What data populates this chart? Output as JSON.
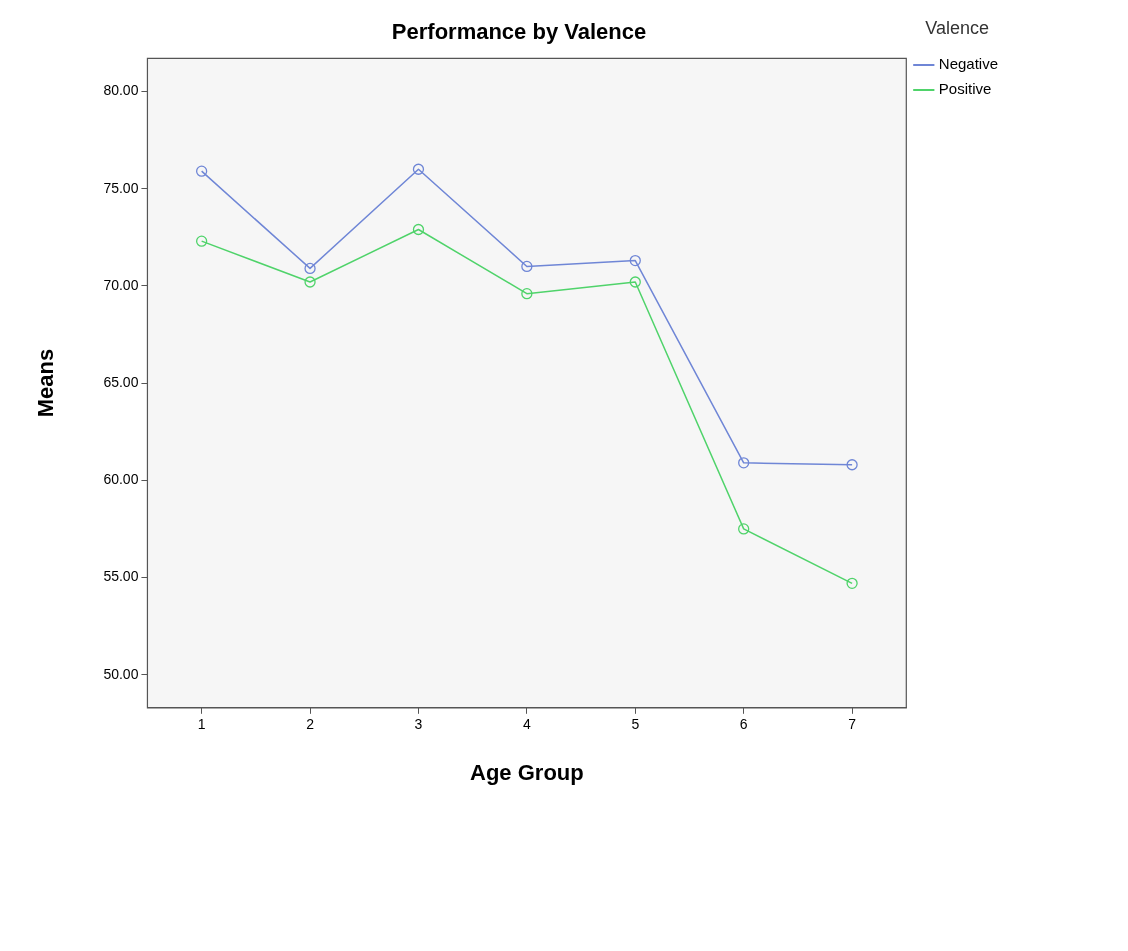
{
  "chart_data": {
    "type": "line",
    "title": "Performance by Valence",
    "xlabel": "Age Group",
    "ylabel": "Means",
    "legend_title": "Valence",
    "categories": [
      "1",
      "2",
      "3",
      "4",
      "5",
      "6",
      "7"
    ],
    "series": [
      {
        "name": "Negative",
        "color": "#6f86d6",
        "values": [
          75.9,
          70.9,
          76.0,
          71.0,
          71.3,
          60.9,
          60.8
        ]
      },
      {
        "name": "Positive",
        "color": "#4fd36a",
        "values": [
          72.3,
          70.2,
          72.9,
          69.6,
          70.2,
          57.5,
          54.7
        ]
      }
    ],
    "ylim": [
      48.3,
      81.7
    ],
    "yticks": [
      {
        "value": 50,
        "label": "50.00"
      },
      {
        "value": 55,
        "label": "55.00"
      },
      {
        "value": 60,
        "label": "60.00"
      },
      {
        "value": 65,
        "label": "65.00"
      },
      {
        "value": 70,
        "label": "70.00"
      },
      {
        "value": 75,
        "label": "75.00"
      },
      {
        "value": 80,
        "label": "80.00"
      }
    ],
    "grid": false,
    "legend": "top right",
    "marker": "circle",
    "line_style": "solid"
  }
}
